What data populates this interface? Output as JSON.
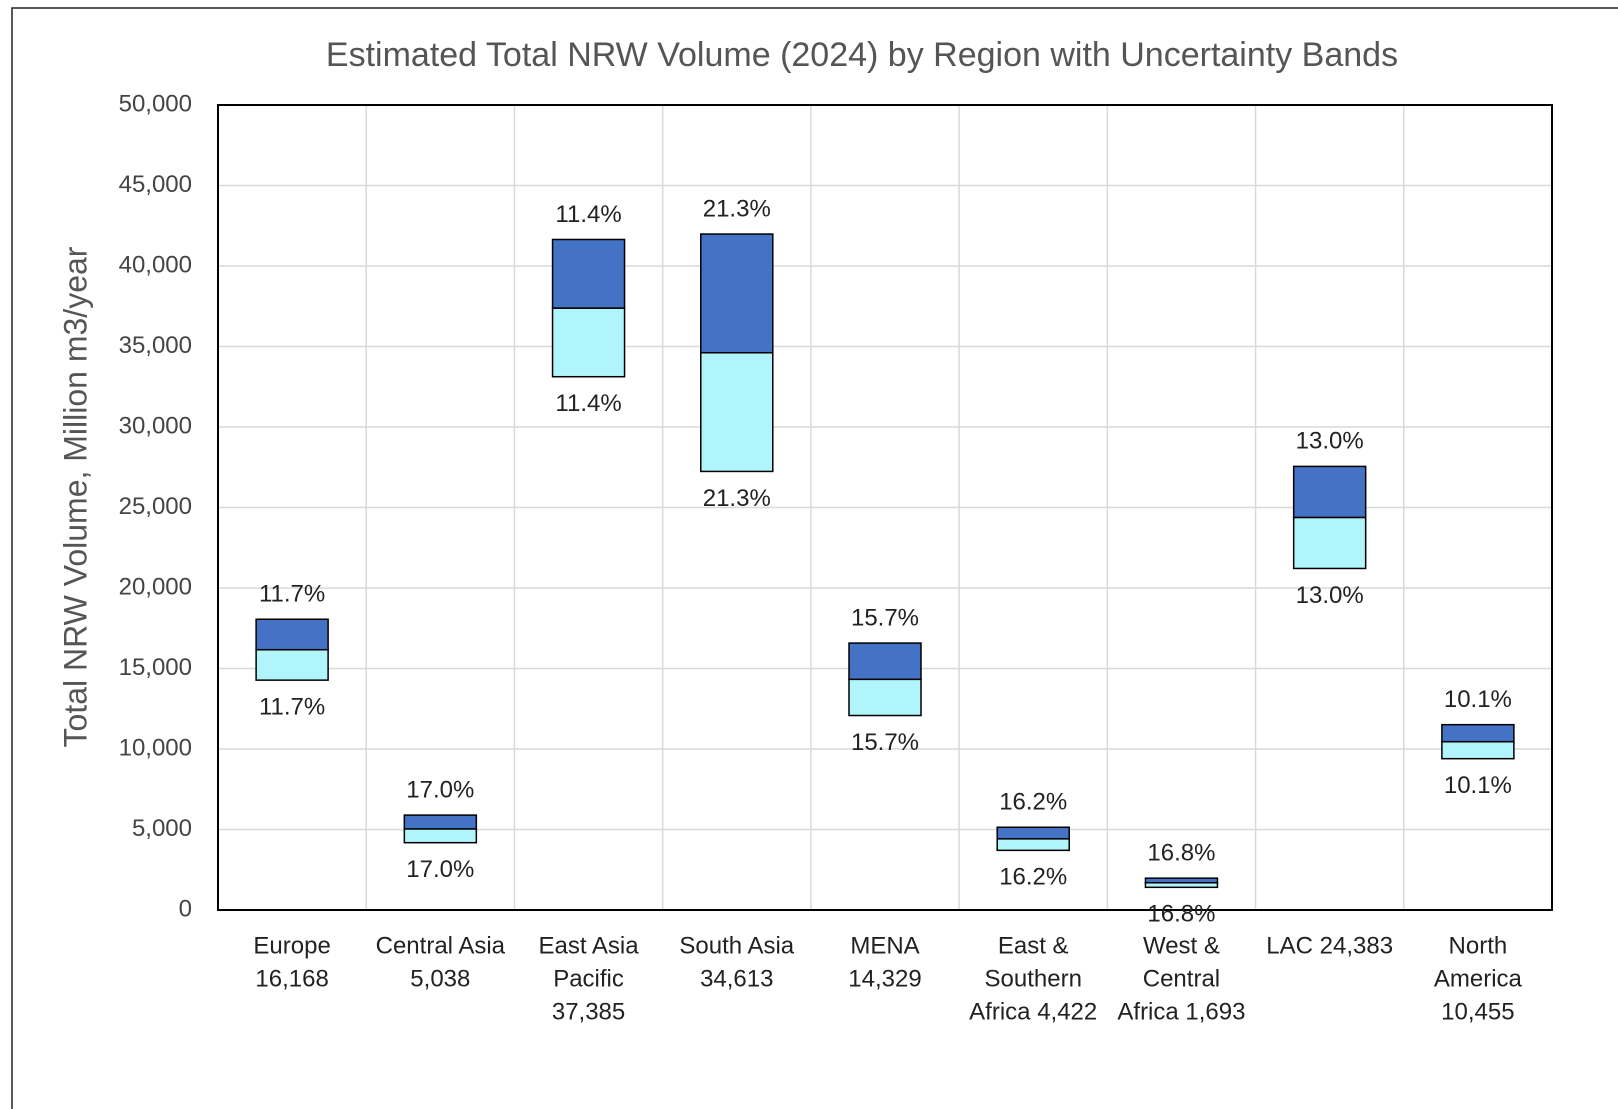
{
  "chart_data": {
    "type": "uncertainty_bar",
    "title": "Estimated Total NRW Volume (2024) by Region with Uncertainty Bands",
    "y_label": "Total NRW Volume, Million m3/year",
    "categories": [
      [
        "Europe",
        "16,168"
      ],
      [
        "Central Asia",
        "5,038"
      ],
      [
        "East Asia",
        "Pacific",
        "37,385"
      ],
      [
        "South Asia",
        "34,613"
      ],
      [
        "MENA",
        "14,329"
      ],
      [
        "East &",
        "Southern",
        "Africa 4,422"
      ],
      [
        "West &",
        "Central",
        "Africa 1,693"
      ],
      [
        "LAC 24,383"
      ],
      [
        "North",
        "America",
        "10,455"
      ]
    ],
    "values": [
      16168,
      5038,
      37385,
      34613,
      14329,
      4422,
      1693,
      24383,
      10455
    ],
    "uncertainty_pct": [
      11.7,
      17.0,
      11.4,
      21.3,
      15.7,
      16.2,
      16.8,
      13.0,
      10.1
    ],
    "uncertainty_labels": [
      "11.7%",
      "17.0%",
      "11.4%",
      "21.3%",
      "15.7%",
      "16.2%",
      "16.8%",
      "13.0%",
      "10.1%"
    ],
    "lower_color": "#b0f4fc",
    "upper_color": "#4472c4",
    "ylim": [
      0,
      50000
    ],
    "yticks": [
      {
        "value": 0,
        "label": "0"
      },
      {
        "value": 5000,
        "label": "5,000"
      },
      {
        "value": 10000,
        "label": "10,000"
      },
      {
        "value": 15000,
        "label": "15,000"
      },
      {
        "value": 20000,
        "label": "20,000"
      },
      {
        "value": 25000,
        "label": "25,000"
      },
      {
        "value": 30000,
        "label": "30,000"
      },
      {
        "value": 35000,
        "label": "35,000"
      },
      {
        "value": 40000,
        "label": "40,000"
      },
      {
        "value": 45000,
        "label": "45,000"
      },
      {
        "value": 50000,
        "label": "50,000"
      }
    ],
    "grid": true
  }
}
